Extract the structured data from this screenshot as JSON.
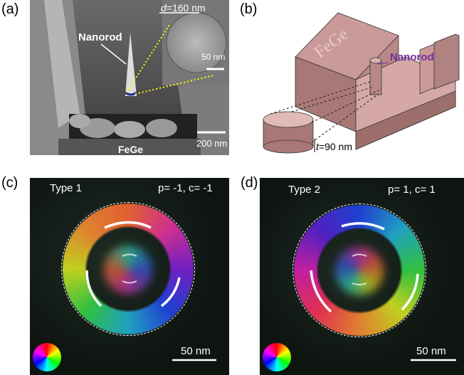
{
  "panel_a": {
    "label": "(a)",
    "diameter_symbol": "d",
    "diameter_value": "=160 nm",
    "rod_label": "Nanorod",
    "inset_scale": "50 nm",
    "scale": "200 nm",
    "material": "FeGe"
  },
  "panel_b": {
    "label": "(b)",
    "material": "FeGe",
    "rod_label": "Nanorod",
    "thickness_symbol": "t",
    "thickness_value": "=90 nm"
  },
  "panel_c": {
    "label": "(c)",
    "type": "Type 1",
    "charge": "p= -1, c= -1",
    "scale": "50 nm"
  },
  "panel_d": {
    "label": "(d)",
    "type": "Type 2",
    "charge": "p= 1, c= 1",
    "scale": "50 nm"
  }
}
